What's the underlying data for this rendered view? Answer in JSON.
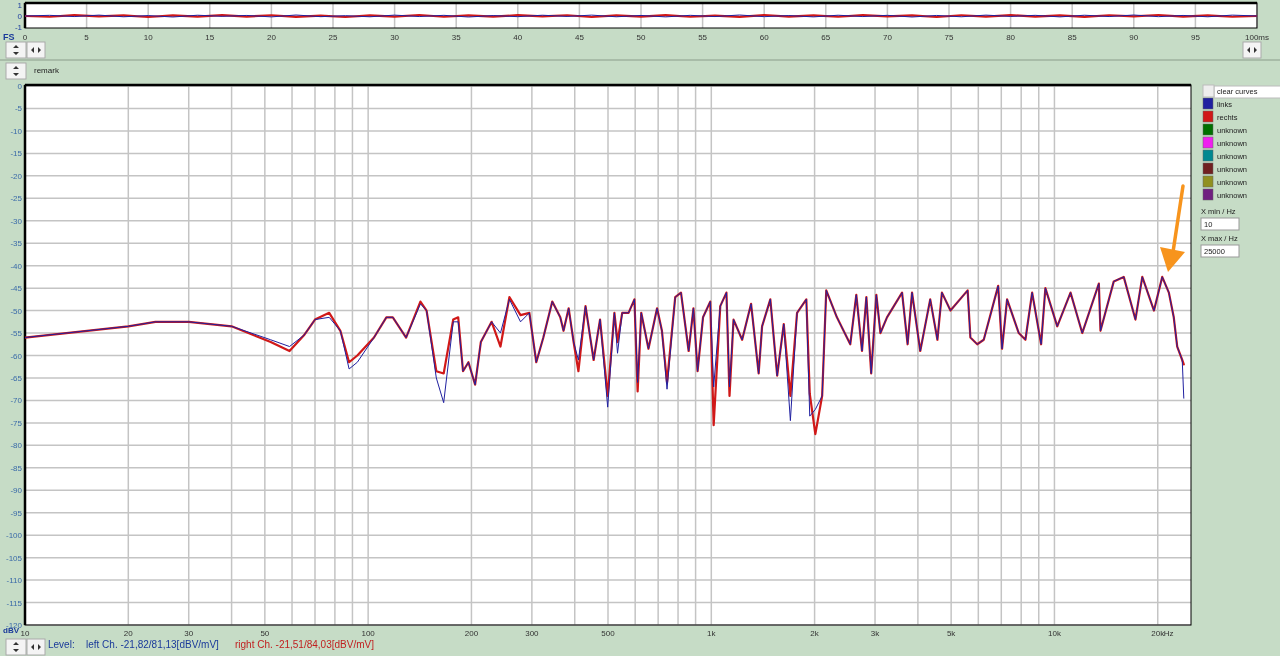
{
  "chart_data": [
    {
      "type": "line",
      "ylabel": "FS",
      "xlim": [
        0,
        100
      ],
      "ylim": [
        -1,
        1
      ],
      "xticks": [
        0,
        5,
        10,
        15,
        20,
        25,
        30,
        35,
        40,
        45,
        50,
        55,
        60,
        65,
        70,
        75,
        80,
        85,
        90,
        95,
        {
          "value": 100,
          "label": "100ms"
        }
      ],
      "yticks": [
        1,
        0,
        -1
      ],
      "grid": "x",
      "legend": false,
      "x": [
        0,
        2,
        4,
        6,
        8,
        10,
        12,
        14,
        16,
        18,
        20,
        22,
        24,
        26,
        28,
        30,
        32,
        34,
        36,
        38,
        40,
        42,
        44,
        46,
        48,
        50,
        52,
        54,
        56,
        58,
        60,
        62,
        64,
        66,
        68,
        70,
        72,
        74,
        76,
        78,
        80,
        82,
        84,
        86,
        88,
        90,
        92,
        94,
        96,
        98,
        100
      ],
      "series": [
        {
          "color": "#2020a0",
          "values": [
            0,
            0.06,
            -0.05,
            0.08,
            -0.07,
            0.04,
            -0.09,
            0.07,
            -0.03,
            0.05,
            -0.08,
            0.09,
            -0.06,
            0.03,
            -0.07,
            0.08,
            -0.05,
            0.06,
            -0.09,
            0.04,
            -0.06,
            0.07,
            -0.04,
            0.08,
            -0.07,
            0.05,
            -0.08,
            0.06,
            -0.05,
            0.09,
            -0.06,
            0.04,
            -0.08,
            0.07,
            -0.05,
            0.06,
            -0.09,
            0.05,
            -0.07,
            0.08,
            -0.04,
            0.06,
            -0.08,
            0.07,
            -0.05,
            0.09,
            -0.06,
            0.05,
            -0.07,
            0.08,
            0
          ]
        },
        {
          "color": "#d01818",
          "values": [
            0,
            -0.07,
            0.08,
            -0.04,
            0.06,
            -0.09,
            0.05,
            -0.06,
            0.08,
            -0.05,
            0.07,
            -0.08,
            0.04,
            -0.09,
            0.06,
            -0.05,
            0.09,
            -0.07,
            0.05,
            -0.06,
            0.08,
            -0.04,
            0.07,
            -0.09,
            0.05,
            -0.06,
            0.08,
            -0.07,
            0.04,
            -0.08,
            0.09,
            -0.05,
            0.06,
            -0.07,
            0.08,
            -0.04,
            0.06,
            -0.09,
            0.07,
            -0.05,
            0.08,
            -0.06,
            0.05,
            -0.08,
            0.07,
            -0.04,
            0.09,
            -0.06,
            0.05,
            -0.07,
            0
          ]
        }
      ]
    },
    {
      "type": "line",
      "ylabel": "dBV",
      "xlabel": "Hz",
      "xlim": [
        10,
        25000
      ],
      "ylim": [
        -120,
        0
      ],
      "log": "x",
      "grid": true,
      "legend": "right",
      "xticks": [
        10,
        20,
        30,
        {
          "value": 40,
          "label": null
        },
        50,
        {
          "value": 60,
          "label": null
        },
        {
          "value": 70,
          "label": null
        },
        {
          "value": 80,
          "label": null
        },
        {
          "value": 90,
          "label": null
        },
        100,
        200,
        300,
        {
          "value": 400,
          "label": null
        },
        500,
        {
          "value": 600,
          "label": null
        },
        {
          "value": 700,
          "label": null
        },
        {
          "value": 800,
          "label": null
        },
        {
          "value": 900,
          "label": null
        },
        {
          "value": 1000,
          "label": "1k"
        },
        {
          "value": 2000,
          "label": "2k"
        },
        {
          "value": 3000,
          "label": "3k"
        },
        {
          "value": 4000,
          "label": null
        },
        {
          "value": 5000,
          "label": "5k"
        },
        {
          "value": 6000,
          "label": null
        },
        {
          "value": 7000,
          "label": null
        },
        {
          "value": 8000,
          "label": null
        },
        {
          "value": 9000,
          "label": null
        },
        {
          "value": 10000,
          "label": "10k"
        },
        {
          "value": 20000,
          "label": "20k"
        }
      ],
      "yticks": [
        0,
        -5,
        -10,
        -15,
        -20,
        -25,
        -30,
        -35,
        -40,
        -45,
        -50,
        -55,
        -60,
        -65,
        -70,
        -75,
        -80,
        -85,
        -90,
        -95,
        -100,
        -105,
        -110,
        -115,
        -120
      ],
      "annotations": [
        "remark",
        "clear curves",
        "X min / Hz",
        "X max / Hz",
        "Level:",
        "left Ch. -21,82/81,13[dBV/mV]",
        "right Ch. -21,51/84,03[dBV/mV]",
        "10",
        "25000"
      ],
      "x": [
        10,
        20,
        24,
        30,
        40,
        52,
        59,
        65,
        70,
        77,
        83,
        88,
        93,
        104,
        113,
        118,
        129,
        142,
        148,
        158,
        166,
        177,
        183,
        189,
        196,
        205,
        213,
        229,
        243,
        258,
        278,
        295,
        309,
        324,
        344,
        363,
        371,
        384,
        397,
        410,
        430,
        454,
        474,
        499,
        522,
        533,
        550,
        574,
        597,
        610,
        625,
        656,
        695,
        718,
        743,
        785,
        816,
        859,
        887,
        912,
        946,
        993,
        1016,
        1062,
        1107,
        1130,
        1161,
        1230,
        1306,
        1374,
        1406,
        1486,
        1556,
        1626,
        1700,
        1778,
        1892,
        1936,
        2010,
        2104,
        2163,
        2323,
        2541,
        2646,
        2749,
        2831,
        2924,
        3027,
        3111,
        3251,
        3597,
        3733,
        3846,
        4064,
        4345,
        4560,
        4700,
        4977,
        5585,
        5689,
        5957,
        6223,
        6855,
        7035,
        7278,
        7870,
        8230,
        8610,
        9145,
        9410,
        10190,
        11140,
        12050,
        13470,
        13620,
        14890,
        15920,
        17220,
        18030,
        19500,
        20610,
        21550,
        22270,
        22790,
        23570,
        23820
      ],
      "series": [
        {
          "name": "links",
          "color": "#2020a0",
          "values": [
            -56,
            -53.5,
            -52.5,
            -52.5,
            -53.5,
            -56.5,
            -58,
            -55.5,
            -52,
            -51.5,
            -54.5,
            -63,
            -61.5,
            -56,
            -51.5,
            -51.5,
            -56,
            -48.5,
            -50,
            -65,
            -70.5,
            -52.5,
            -52.5,
            -63.5,
            -61.5,
            -66.5,
            -57,
            -52.5,
            -55,
            -47.5,
            -52.5,
            -50.5,
            -61.5,
            -56,
            -48,
            -51.5,
            -54.5,
            -49.5,
            -57,
            -61,
            -49,
            -61,
            -52,
            -71.5,
            -50.5,
            -59.5,
            -50.5,
            -50.5,
            -47.5,
            -66,
            -50.5,
            -58.5,
            -49.5,
            -54.5,
            -67.5,
            -47,
            -46,
            -59,
            -49.5,
            -63.5,
            -51.5,
            -48,
            -67,
            -49,
            -46,
            -67,
            -52,
            -56.5,
            -48.5,
            -64,
            -53.5,
            -47.5,
            -64.5,
            -53,
            -74.5,
            -50.5,
            -47.5,
            -73.5,
            -72,
            -69,
            -45.5,
            -51.5,
            -57.5,
            -46.5,
            -59,
            -47,
            -64,
            -46.5,
            -55,
            -51.5,
            -46,
            -57.5,
            -46,
            -59,
            -47.5,
            -56.5,
            -46,
            -50,
            -45.5,
            -56,
            -57.5,
            -56.5,
            -44.5,
            -58.5,
            -47.5,
            -55,
            -56.5,
            -46,
            -57.5,
            -45,
            -53.5,
            -46,
            -55,
            -44,
            -54.5,
            -43.5,
            -42.5,
            -52,
            -42.5,
            -50,
            -42.5,
            -46,
            -51.5,
            -58,
            -61,
            -69.5
          ]
        },
        {
          "name": "rechts",
          "color": "#d01818",
          "values": [
            -56,
            -53.5,
            -52.5,
            -52.5,
            -53.5,
            -57,
            -59,
            -55.5,
            -52,
            -50.5,
            -54.5,
            -61.5,
            -60,
            -56,
            -51.5,
            -51.5,
            -56,
            -48,
            -50,
            -63.5,
            -64,
            -52,
            -51.5,
            -63.5,
            -61.5,
            -66.5,
            -57,
            -52.5,
            -58,
            -47,
            -51,
            -50.5,
            -61.5,
            -56,
            -48,
            -51.5,
            -54.5,
            -49.5,
            -57,
            -63.5,
            -49,
            -61,
            -52,
            -69,
            -50.5,
            -57,
            -50.5,
            -50.5,
            -47.5,
            -68,
            -50.5,
            -58.5,
            -49.5,
            -54.5,
            -66,
            -47,
            -46,
            -59,
            -49.5,
            -63.5,
            -51.5,
            -48,
            -75.5,
            -49,
            -46,
            -69,
            -52,
            -56.5,
            -48.5,
            -64,
            -53.5,
            -47.5,
            -64.5,
            -53,
            -69,
            -50.5,
            -47.5,
            -68.5,
            -77.5,
            -69,
            -45.5,
            -51.5,
            -57.5,
            -46.5,
            -59,
            -47,
            -64,
            -46.5,
            -55,
            -51.5,
            -46,
            -57.5,
            -46,
            -59,
            -47.5,
            -56.5,
            -46,
            -50,
            -45.5,
            -56,
            -57.5,
            -56.5,
            -44.5,
            -58.5,
            -47.5,
            -55,
            -56.5,
            -46,
            -57.5,
            -45,
            -53.5,
            -46,
            -55,
            -44,
            -54.5,
            -43.5,
            -42.5,
            -52,
            -42.5,
            -50,
            -42.5,
            -46,
            -51.5,
            -58,
            -61,
            -62
          ]
        },
        {
          "name": "unknown",
          "color": "#007000",
          "values": [
            null,
            null,
            null,
            null,
            null,
            null,
            null,
            null,
            null,
            null,
            null,
            null,
            null,
            null,
            null,
            null,
            null,
            null,
            null,
            null,
            null,
            null,
            null,
            null,
            null,
            null,
            null,
            null,
            null,
            null,
            null,
            null,
            null,
            null,
            null,
            null,
            null,
            null,
            null,
            null,
            null,
            null,
            null,
            null,
            null,
            null,
            null,
            null,
            null,
            null,
            null,
            null,
            null,
            null,
            null,
            null,
            null,
            null,
            null,
            null,
            null,
            null,
            null,
            null,
            null,
            null,
            null,
            null,
            null,
            null,
            null,
            null,
            null,
            null,
            null,
            null,
            null,
            null,
            null,
            null,
            null,
            null,
            null,
            null,
            null,
            null,
            null,
            null,
            null,
            null,
            null,
            null,
            null,
            null,
            null,
            null,
            null,
            null,
            null,
            null,
            null,
            null,
            null,
            null,
            null,
            null,
            null,
            null,
            null,
            null,
            null,
            null,
            null,
            null,
            null,
            null,
            null,
            null,
            null,
            null,
            null,
            null,
            null,
            null,
            null,
            null
          ]
        },
        {
          "name": "unknown",
          "color": "#f020f0",
          "values": [
            null,
            null,
            null,
            null,
            null,
            null,
            null,
            null,
            null,
            null,
            null,
            null,
            null,
            null,
            null,
            null,
            null,
            null,
            null,
            null,
            null,
            null,
            null,
            null,
            null,
            null,
            null,
            null,
            null,
            null,
            null,
            null,
            null,
            null,
            null,
            null,
            null,
            null,
            null,
            null,
            null,
            null,
            null,
            null,
            null,
            null,
            null,
            null,
            null,
            null,
            null,
            null,
            null,
            null,
            null,
            null,
            null,
            null,
            null,
            null,
            null,
            null,
            null,
            null,
            null,
            null,
            null,
            null,
            null,
            null,
            null,
            null,
            null,
            null,
            null,
            null,
            null,
            null,
            null,
            null,
            null,
            null,
            null,
            null,
            null,
            null,
            null,
            null,
            null,
            null,
            null,
            null,
            null,
            null,
            null,
            null,
            null,
            null,
            null,
            null,
            null,
            null,
            null,
            null,
            null,
            null,
            null,
            null,
            null,
            null,
            null,
            null,
            null,
            null,
            null,
            null,
            null,
            null,
            null,
            null,
            null,
            null,
            null,
            null,
            null,
            null
          ]
        },
        {
          "name": "unknown",
          "color": "#008890",
          "values": [
            null,
            null,
            null,
            null,
            null,
            null,
            null,
            null,
            null,
            null,
            null,
            null,
            null,
            null,
            null,
            null,
            null,
            null,
            null,
            null,
            null,
            null,
            null,
            null,
            null,
            null,
            null,
            null,
            null,
            null,
            null,
            null,
            null,
            null,
            null,
            null,
            null,
            null,
            null,
            null,
            null,
            null,
            null,
            null,
            null,
            null,
            null,
            null,
            null,
            null,
            null,
            null,
            null,
            null,
            null,
            null,
            null,
            null,
            null,
            null,
            null,
            null,
            null,
            null,
            null,
            null,
            null,
            null,
            null,
            null,
            null,
            null,
            null,
            null,
            null,
            null,
            null,
            null,
            null,
            null,
            null,
            null,
            null,
            null,
            null,
            null,
            null,
            null,
            null,
            null,
            null,
            null,
            null,
            null,
            null,
            null,
            null,
            null,
            null,
            null,
            null,
            null,
            null,
            null,
            null,
            null,
            null,
            null,
            null,
            null,
            null,
            null,
            null,
            null,
            null,
            null,
            null,
            null,
            null,
            null,
            null,
            null,
            null,
            null,
            null,
            null
          ]
        },
        {
          "name": "unknown",
          "color": "#702020",
          "values": [
            null,
            null,
            null,
            null,
            null,
            null,
            null,
            null,
            null,
            null,
            null,
            null,
            null,
            null,
            null,
            null,
            null,
            null,
            null,
            null,
            null,
            null,
            null,
            null,
            null,
            null,
            null,
            null,
            null,
            null,
            null,
            null,
            null,
            null,
            null,
            null,
            null,
            null,
            null,
            null,
            null,
            null,
            null,
            null,
            null,
            null,
            null,
            null,
            null,
            null,
            null,
            null,
            null,
            null,
            null,
            null,
            null,
            null,
            null,
            null,
            null,
            null,
            null,
            null,
            null,
            null,
            null,
            null,
            null,
            null,
            null,
            null,
            null,
            null,
            null,
            null,
            null,
            null,
            null,
            null,
            null,
            null,
            null,
            null,
            null,
            null,
            null,
            null,
            null,
            null,
            null,
            null,
            null,
            null,
            null,
            null,
            null,
            null,
            null,
            null,
            null,
            null,
            null,
            null,
            null,
            null,
            null,
            null,
            null,
            null,
            null,
            null,
            null,
            null,
            null,
            null,
            null,
            null,
            null,
            null,
            null,
            null,
            null,
            null,
            null,
            null
          ]
        },
        {
          "name": "unknown",
          "color": "#909020",
          "values": [
            null,
            null,
            null,
            null,
            null,
            null,
            null,
            null,
            null,
            null,
            null,
            null,
            null,
            null,
            null,
            null,
            null,
            null,
            null,
            null,
            null,
            null,
            null,
            null,
            null,
            null,
            null,
            null,
            null,
            null,
            null,
            null,
            null,
            null,
            null,
            null,
            null,
            null,
            null,
            null,
            null,
            null,
            null,
            null,
            null,
            null,
            null,
            null,
            null,
            null,
            null,
            null,
            null,
            null,
            null,
            null,
            null,
            null,
            null,
            null,
            null,
            null,
            null,
            null,
            null,
            null,
            null,
            null,
            null,
            null,
            null,
            null,
            null,
            null,
            null,
            null,
            null,
            null,
            null,
            null,
            null,
            null,
            null,
            null,
            null,
            null,
            null,
            null,
            null,
            null,
            null,
            null,
            null,
            null,
            null,
            null,
            null,
            null,
            null,
            null,
            null,
            null,
            null,
            null,
            null,
            null,
            null,
            null,
            null,
            null,
            null,
            null,
            null,
            null,
            null,
            null,
            null,
            null,
            null,
            null,
            null,
            null,
            null,
            null,
            null,
            null
          ]
        },
        {
          "name": "unknown",
          "color": "#702080",
          "values": [
            null,
            null,
            null,
            null,
            null,
            null,
            null,
            null,
            null,
            null,
            null,
            null,
            null,
            null,
            null,
            null,
            null,
            null,
            null,
            null,
            null,
            null,
            null,
            null,
            null,
            null,
            null,
            null,
            null,
            null,
            null,
            null,
            null,
            null,
            null,
            null,
            null,
            null,
            null,
            null,
            null,
            null,
            null,
            null,
            null,
            null,
            null,
            null,
            null,
            null,
            null,
            null,
            null,
            null,
            null,
            null,
            null,
            null,
            null,
            null,
            null,
            null,
            null,
            null,
            null,
            null,
            null,
            null,
            null,
            null,
            null,
            null,
            null,
            null,
            null,
            null,
            null,
            null,
            null,
            null,
            null,
            null,
            null,
            null,
            null,
            null,
            null,
            null,
            null,
            null,
            null,
            null,
            null,
            null,
            null,
            null,
            null,
            null,
            null,
            null,
            null,
            null,
            null,
            null,
            null,
            null,
            null,
            null,
            null,
            null,
            null,
            null,
            null,
            null,
            null,
            null,
            null,
            null,
            null,
            null,
            null,
            null,
            null,
            null,
            null,
            null
          ]
        }
      ]
    }
  ]
}
